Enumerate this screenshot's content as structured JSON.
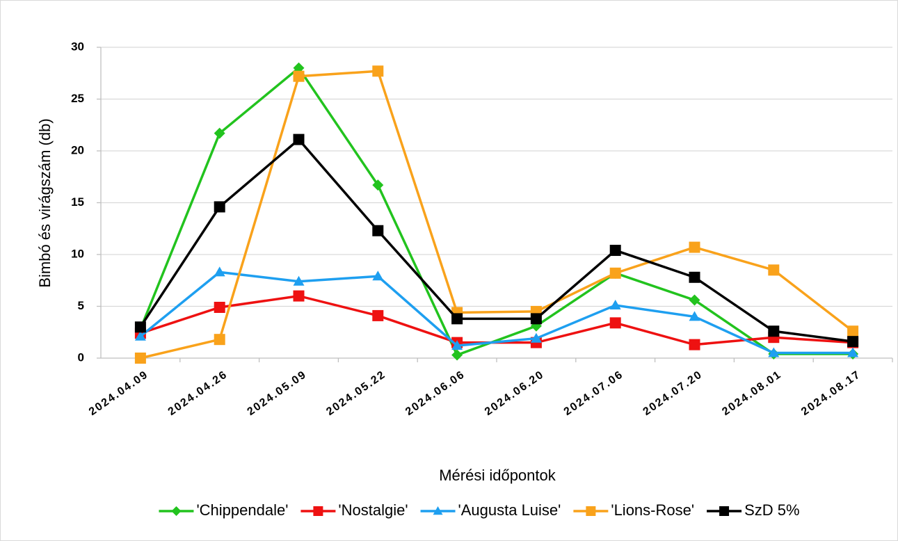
{
  "chart_data": {
    "type": "line",
    "x_label": "Mérési időpontok",
    "y_label": "Bimbó és virágszám (db)",
    "categories": [
      "2024.04.09",
      "2024.04.26",
      "2024.05.09",
      "2024.05.22",
      "2024.06.06",
      "2024.06.20",
      "2024.07.06",
      "2024.07.20",
      "2024.08.01",
      "2024.08.17"
    ],
    "series": [
      {
        "name": "'Chippendale'",
        "color": "#22c31e",
        "marker": "diamond",
        "values": [
          2.8,
          21.7,
          28,
          16.7,
          0.3,
          3.1,
          8.2,
          5.6,
          0.4,
          0.4
        ]
      },
      {
        "name": "'Nostalgie'",
        "color": "#ee1111",
        "marker": "square",
        "values": [
          2.4,
          4.9,
          6.0,
          4.1,
          1.5,
          1.5,
          3.4,
          1.3,
          2.0,
          1.5
        ]
      },
      {
        "name": "'Augusta Luise'",
        "color": "#1e9ff0",
        "marker": "triangle",
        "values": [
          2.1,
          8.3,
          7.4,
          7.9,
          1.2,
          1.9,
          5.1,
          4.0,
          0.5,
          0.5
        ]
      },
      {
        "name": "'Lions-Rose'",
        "color": "#f9a21b",
        "marker": "square",
        "values": [
          0,
          1.8,
          27.2,
          27.7,
          4.4,
          4.5,
          8.2,
          10.7,
          8.5,
          2.6
        ]
      },
      {
        "name": "SzD 5%",
        "color": "#000000",
        "marker": "square",
        "values": [
          3.0,
          14.6,
          21.1,
          12.3,
          3.8,
          3.8,
          10.4,
          7.8,
          2.6,
          1.6
        ]
      }
    ],
    "ylim": [
      0,
      30
    ],
    "yticks": [
      0,
      5,
      10,
      15,
      20,
      25,
      30
    ],
    "grid": true,
    "legend": "bottom"
  }
}
